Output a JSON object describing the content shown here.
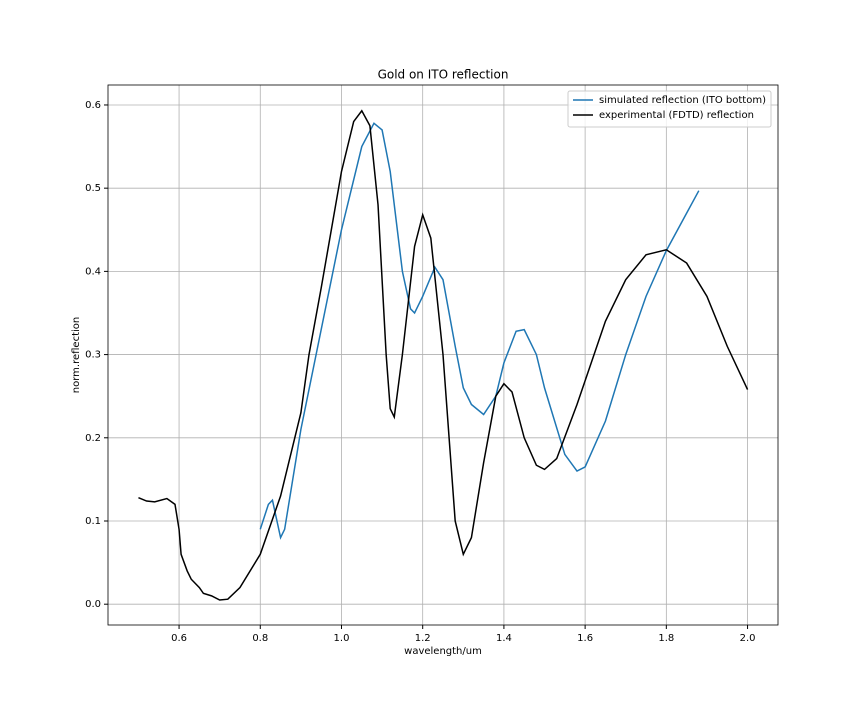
{
  "chart_data": {
    "type": "line",
    "title": "Gold on ITO reflection",
    "xlabel": "wavelength/um",
    "ylabel": "norm.reflection",
    "xlim": [
      0.425,
      2.075
    ],
    "ylim": [
      -0.025,
      0.624
    ],
    "xticks": [
      0.6,
      0.8,
      {
        "value": 1,
        "label": "1.0"
      },
      1.2,
      1.4,
      1.6,
      1.8,
      {
        "value": 2,
        "label": "2.0"
      }
    ],
    "yticks": [
      {
        "value": 0,
        "label": "0.0"
      },
      0.1,
      0.2,
      0.3,
      0.4,
      0.5,
      0.6
    ],
    "grid": true,
    "legend": "upper right",
    "series": [
      {
        "name": "simulated reflection (ITO bottom)",
        "color": "#1f77b4",
        "x": [
          0.8,
          0.82,
          0.83,
          0.85,
          0.86,
          0.88,
          0.9,
          0.95,
          1.0,
          1.05,
          1.08,
          1.1,
          1.12,
          1.15,
          1.17,
          1.18,
          1.2,
          1.23,
          1.25,
          1.28,
          1.3,
          1.32,
          1.35,
          1.38,
          1.4,
          1.43,
          1.45,
          1.48,
          1.5,
          1.55,
          1.58,
          1.6,
          1.65,
          1.7,
          1.75,
          1.8,
          1.85,
          1.88
        ],
        "values": [
          0.09,
          0.12,
          0.125,
          0.08,
          0.09,
          0.15,
          0.21,
          0.33,
          0.45,
          0.55,
          0.578,
          0.57,
          0.52,
          0.4,
          0.355,
          0.35,
          0.37,
          0.405,
          0.39,
          0.31,
          0.26,
          0.24,
          0.228,
          0.25,
          0.29,
          0.328,
          0.33,
          0.3,
          0.26,
          0.18,
          0.16,
          0.165,
          0.22,
          0.3,
          0.37,
          0.425,
          0.47,
          0.497
        ]
      },
      {
        "name": "experimental (FDTD) reflection",
        "color": "#000000",
        "x": [
          0.5,
          0.52,
          0.54,
          0.57,
          0.59,
          0.6,
          0.605,
          0.62,
          0.63,
          0.65,
          0.66,
          0.68,
          0.7,
          0.72,
          0.75,
          0.8,
          0.85,
          0.9,
          0.92,
          0.95,
          1.0,
          1.03,
          1.05,
          1.07,
          1.09,
          1.11,
          1.12,
          1.13,
          1.15,
          1.18,
          1.2,
          1.22,
          1.25,
          1.28,
          1.3,
          1.32,
          1.35,
          1.38,
          1.4,
          1.42,
          1.45,
          1.48,
          1.5,
          1.53,
          1.58,
          1.65,
          1.7,
          1.75,
          1.8,
          1.85,
          1.9,
          1.95,
          2.0
        ],
        "values": [
          0.128,
          0.124,
          0.123,
          0.127,
          0.12,
          0.09,
          0.06,
          0.04,
          0.03,
          0.02,
          0.013,
          0.01,
          0.005,
          0.006,
          0.02,
          0.06,
          0.13,
          0.23,
          0.3,
          0.38,
          0.52,
          0.58,
          0.593,
          0.575,
          0.48,
          0.3,
          0.235,
          0.225,
          0.3,
          0.43,
          0.468,
          0.44,
          0.3,
          0.1,
          0.06,
          0.08,
          0.17,
          0.25,
          0.265,
          0.255,
          0.2,
          0.167,
          0.162,
          0.175,
          0.24,
          0.34,
          0.39,
          0.42,
          0.426,
          0.41,
          0.37,
          0.31,
          0.258
        ]
      }
    ]
  }
}
